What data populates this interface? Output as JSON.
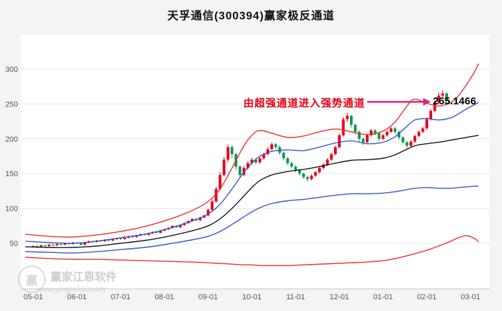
{
  "header": {
    "title": "天孚通信(300394)赢家极反通道"
  },
  "annotation": {
    "text": "由超强通道进入强势通道",
    "price_label": "265.1466"
  },
  "watermark": {
    "logo_char": "赢",
    "brand": "赢家江恩软件",
    "url": "www.yingjia360.com"
  },
  "colors": {
    "up": "#e8001c",
    "down": "#0e9950",
    "arrow": "#d8277e",
    "annotation_text": "#e60012",
    "grid": "#e7e7e7",
    "axis_text": "#555555",
    "background": "#f4f4f4",
    "plot_background": "#ffffff",
    "channel_red": "#ee2c2c",
    "channel_blue": "#3657c8",
    "channel_mid": "#141414"
  },
  "chart_data": {
    "type": "candlestick",
    "title": "天孚通信(300394)赢家极反通道",
    "stock_name": "天孚通信",
    "stock_code": "300394",
    "indicator_name": "赢家极反通道",
    "grid": true,
    "ylim": [
      0,
      320
    ],
    "y_ticks": [
      50,
      100,
      150,
      200,
      250,
      300
    ],
    "x_tick_labels": [
      "05-01",
      "06-01",
      "07-01",
      "08-01",
      "09-01",
      "10-01",
      "11-01",
      "12-01",
      "01-01",
      "02-01",
      "03-01"
    ],
    "x_tick_indices": [
      0,
      11,
      22,
      33,
      44,
      55,
      66,
      77,
      88,
      99,
      110
    ],
    "candles_ohlc": [
      [
        45,
        47,
        44,
        46
      ],
      [
        46,
        47,
        43,
        45
      ],
      [
        45,
        48,
        44,
        47
      ],
      [
        47,
        48,
        45,
        46
      ],
      [
        46,
        49,
        45,
        48
      ],
      [
        48,
        49,
        46,
        47
      ],
      [
        47,
        50,
        46,
        49
      ],
      [
        49,
        50,
        47,
        48
      ],
      [
        48,
        51,
        47,
        50
      ],
      [
        50,
        51,
        48,
        49
      ],
      [
        49,
        52,
        48,
        51
      ],
      [
        51,
        52,
        49,
        50
      ],
      [
        50,
        51,
        47,
        48
      ],
      [
        48,
        52,
        47,
        51
      ],
      [
        51,
        54,
        50,
        53
      ],
      [
        53,
        54,
        51,
        52
      ],
      [
        52,
        55,
        51,
        54
      ],
      [
        54,
        55,
        52,
        53
      ],
      [
        53,
        56,
        52,
        55
      ],
      [
        55,
        56,
        53,
        54
      ],
      [
        54,
        57,
        53,
        56
      ],
      [
        56,
        58,
        55,
        57
      ],
      [
        57,
        58,
        55,
        56
      ],
      [
        56,
        59,
        55,
        58
      ],
      [
        58,
        61,
        57,
        60
      ],
      [
        60,
        61,
        58,
        59
      ],
      [
        59,
        62,
        58,
        61
      ],
      [
        61,
        64,
        60,
        63
      ],
      [
        63,
        64,
        61,
        62
      ],
      [
        62,
        65,
        61,
        64
      ],
      [
        64,
        67,
        63,
        66
      ],
      [
        66,
        67,
        64,
        65
      ],
      [
        65,
        69,
        64,
        68
      ],
      [
        68,
        71,
        67,
        70
      ],
      [
        70,
        73,
        69,
        72
      ],
      [
        72,
        76,
        71,
        75
      ],
      [
        75,
        76,
        72,
        73
      ],
      [
        73,
        77,
        72,
        76
      ],
      [
        76,
        80,
        75,
        79
      ],
      [
        79,
        83,
        78,
        82
      ],
      [
        82,
        86,
        81,
        85
      ],
      [
        85,
        86,
        82,
        83
      ],
      [
        83,
        88,
        82,
        87
      ],
      [
        87,
        91,
        86,
        90
      ],
      [
        90,
        100,
        89,
        98
      ],
      [
        98,
        113,
        97,
        110
      ],
      [
        110,
        131,
        108,
        128
      ],
      [
        128,
        152,
        126,
        148
      ],
      [
        148,
        174,
        146,
        170
      ],
      [
        170,
        192,
        166,
        188
      ],
      [
        188,
        191,
        172,
        178
      ],
      [
        178,
        180,
        155,
        160
      ],
      [
        160,
        162,
        143,
        148
      ],
      [
        148,
        161,
        146,
        158
      ],
      [
        158,
        168,
        156,
        165
      ],
      [
        165,
        173,
        163,
        170
      ],
      [
        170,
        172,
        163,
        166
      ],
      [
        166,
        174,
        164,
        172
      ],
      [
        172,
        180,
        170,
        178
      ],
      [
        178,
        188,
        176,
        185
      ],
      [
        185,
        195,
        183,
        192
      ],
      [
        192,
        194,
        185,
        188
      ],
      [
        188,
        190,
        177,
        180
      ],
      [
        180,
        182,
        169,
        172
      ],
      [
        172,
        174,
        162,
        165
      ],
      [
        165,
        167,
        157,
        160
      ],
      [
        160,
        162,
        152,
        155
      ],
      [
        155,
        157,
        147,
        150
      ],
      [
        150,
        152,
        142,
        145
      ],
      [
        145,
        147,
        139,
        142
      ],
      [
        142,
        149,
        140,
        147
      ],
      [
        147,
        154,
        145,
        152
      ],
      [
        152,
        160,
        150,
        158
      ],
      [
        158,
        165,
        156,
        163
      ],
      [
        163,
        172,
        161,
        170
      ],
      [
        170,
        180,
        168,
        178
      ],
      [
        178,
        190,
        176,
        188
      ],
      [
        188,
        208,
        186,
        205
      ],
      [
        205,
        231,
        203,
        228
      ],
      [
        228,
        237,
        224,
        233
      ],
      [
        233,
        234,
        216,
        220
      ],
      [
        220,
        222,
        206,
        210
      ],
      [
        210,
        212,
        196,
        200
      ],
      [
        200,
        202,
        191,
        195
      ],
      [
        195,
        208,
        193,
        205
      ],
      [
        205,
        214,
        203,
        212
      ],
      [
        212,
        214,
        205,
        208
      ],
      [
        208,
        210,
        197,
        200
      ],
      [
        200,
        207,
        198,
        205
      ],
      [
        205,
        212,
        203,
        210
      ],
      [
        210,
        217,
        208,
        215
      ],
      [
        215,
        217,
        207,
        210
      ],
      [
        210,
        212,
        199,
        202
      ],
      [
        202,
        204,
        192,
        195
      ],
      [
        195,
        197,
        187,
        190
      ],
      [
        190,
        198,
        188,
        196
      ],
      [
        196,
        206,
        194,
        204
      ],
      [
        204,
        212,
        202,
        210
      ],
      [
        210,
        217,
        208,
        215
      ],
      [
        215,
        231,
        213,
        228
      ],
      [
        228,
        243,
        226,
        240
      ],
      [
        240,
        255,
        238,
        252
      ],
      [
        252,
        266,
        250,
        262
      ],
      [
        262,
        270,
        258,
        265
      ],
      [
        265,
        267,
        250,
        255
      ]
    ],
    "channel_x": [
      -2,
      4,
      10,
      16,
      22,
      28,
      34,
      40,
      44,
      47,
      50,
      53,
      55,
      57,
      60,
      64,
      68,
      72,
      76,
      80,
      84,
      88,
      91,
      94,
      96,
      99,
      102,
      105,
      107,
      109,
      111,
      112
    ],
    "channels": [
      {
        "name": "outer-upper-red",
        "color": "#ee2c2c",
        "values": [
          63,
          60,
          59,
          62,
          67,
          74,
          84,
          97,
          110,
          128,
          158,
          190,
          205,
          212,
          208,
          202,
          204,
          210,
          214,
          210,
          206,
          211,
          224,
          247,
          257,
          251,
          247,
          252,
          262,
          278,
          296,
          308
        ]
      },
      {
        "name": "inner-upper-blue",
        "color": "#3657c8",
        "values": [
          53,
          51,
          50,
          53,
          58,
          63,
          71,
          82,
          92,
          106,
          128,
          152,
          165,
          175,
          182,
          184,
          183,
          188,
          194,
          197,
          193,
          195,
          203,
          218,
          227,
          229,
          227,
          230,
          236,
          243,
          249,
          252
        ]
      },
      {
        "name": "middle-black",
        "color": "#141414",
        "values": [
          45,
          44,
          44,
          46,
          50,
          54,
          60,
          68,
          75,
          85,
          100,
          118,
          130,
          140,
          148,
          153,
          156,
          160,
          165,
          169,
          170,
          172,
          177,
          185,
          190,
          193,
          195,
          198,
          200,
          202,
          204,
          205
        ]
      },
      {
        "name": "inner-lower-blue",
        "color": "#3657c8",
        "values": [
          38,
          37,
          36,
          38,
          41,
          44,
          49,
          55,
          60,
          67,
          77,
          88,
          95,
          101,
          107,
          111,
          113,
          116,
          119,
          121,
          121,
          122,
          124,
          127,
          129,
          130,
          129,
          129,
          130,
          131,
          132,
          132
        ]
      },
      {
        "name": "outer-lower-red",
        "color": "#ee2c2c",
        "values": [
          30,
          28,
          27,
          27,
          26,
          25,
          24,
          23,
          22,
          21,
          20,
          19,
          19,
          18,
          18,
          18,
          19,
          20,
          21,
          22,
          23,
          25,
          28,
          32,
          35,
          40,
          46,
          53,
          58,
          61,
          57,
          52
        ]
      }
    ],
    "annotation": {
      "text": "由超强通道进入强势通道",
      "price_label": "265.1466",
      "arrow_points_to_price": 253
    }
  }
}
